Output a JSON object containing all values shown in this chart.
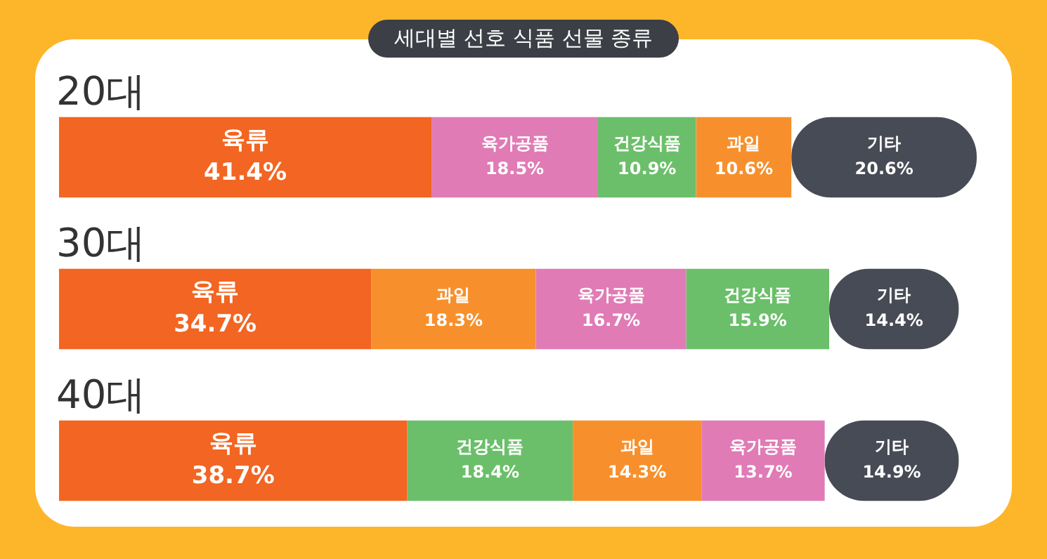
{
  "chart_data": {
    "type": "bar",
    "orientation": "horizontal",
    "stacked": true,
    "title": "세대별 선호 식품 선물 종류",
    "categories": [
      "20대",
      "30대",
      "40대"
    ],
    "series": [
      {
        "colors": [
          "#f26522",
          "#f26522",
          "#f26522"
        ],
        "values": [
          41.4,
          34.7,
          38.7
        ],
        "value_labels": [
          "육류\n41.4%",
          "육류\n34.7%",
          "육류\n38.7%"
        ]
      },
      {
        "colors": [
          "#e07bb5",
          "#f7902c",
          "#6bbf6a"
        ],
        "values": [
          18.5,
          18.3,
          18.4
        ],
        "value_labels": [
          "육가공품\n18.5%",
          "과일\n18.3%",
          "건강식품\n18.4%"
        ]
      },
      {
        "colors": [
          "#6bbf6a",
          "#e07bb5",
          "#f7902c"
        ],
        "values": [
          10.9,
          16.7,
          14.3
        ],
        "value_labels": [
          "건강식품\n10.9%",
          "육가공품\n16.7%",
          "과일\n14.3%"
        ]
      },
      {
        "colors": [
          "#f7902c",
          "#6bbf6a",
          "#e07bb5"
        ],
        "values": [
          10.6,
          15.9,
          13.7
        ],
        "value_labels": [
          "과일\n10.6%",
          "건강식품\n15.9%",
          "육가공품\n13.7%"
        ]
      },
      {
        "colors": [
          "#474b55",
          "#474b55",
          "#474b55"
        ],
        "values": [
          20.6,
          14.4,
          14.9
        ],
        "value_labels": [
          "기타\n20.6%",
          "기타\n14.4%",
          "기타\n14.9%"
        ]
      }
    ],
    "tick_labels": "y",
    "legend": false
  }
}
